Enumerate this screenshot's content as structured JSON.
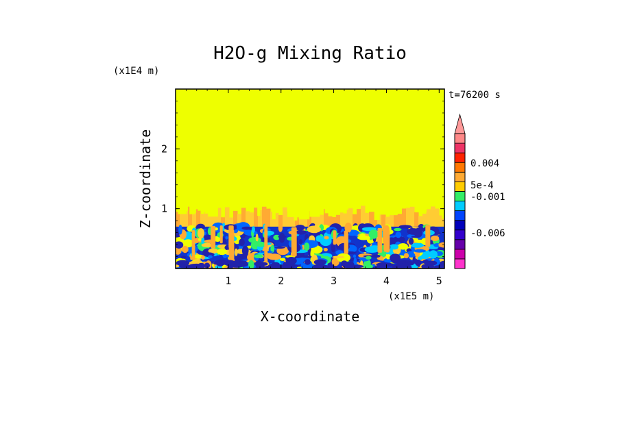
{
  "chart_data": {
    "type": "heatmap",
    "title": "H2O-g Mixing Ratio",
    "time_label": "t=76200 s",
    "xlabel": "X-coordinate",
    "ylabel": "Z-coordinate",
    "x_multiplier": "(x1E5 m)",
    "y_multiplier": "(x1E4 m)",
    "xlim": [
      0,
      5.1
    ],
    "ylim": [
      0,
      3
    ],
    "x_ticks": [
      "1",
      "2",
      "3",
      "4",
      "5"
    ],
    "y_ticks": [
      "1",
      "2"
    ],
    "colorbar_labels": [
      "0.004",
      "5e-4",
      "-0.001",
      "-0.006"
    ],
    "colorbar_colors": [
      "#ff33cc",
      "#cc00aa",
      "#6600aa",
      "#3300cc",
      "#0000bb",
      "#0044ff",
      "#00ccff",
      "#33ee66",
      "#ffcc00",
      "#ffaa33",
      "#ff7700",
      "#ff2200",
      "#ee3366",
      "#ff8888"
    ],
    "field_colors": {
      "upper": "#eeff00",
      "transition": "#ffcc33",
      "plume": "#ffaa33",
      "bl_base": "#1133cc",
      "bl_dark": "#2222aa",
      "bl_mid": "#0066ff",
      "bl_light": "#00ccff",
      "bl_green": "#33ee66",
      "bl_yellow": "#eeff00"
    },
    "boundary_layer_top": 0.7,
    "plume_top": 1.05
  }
}
